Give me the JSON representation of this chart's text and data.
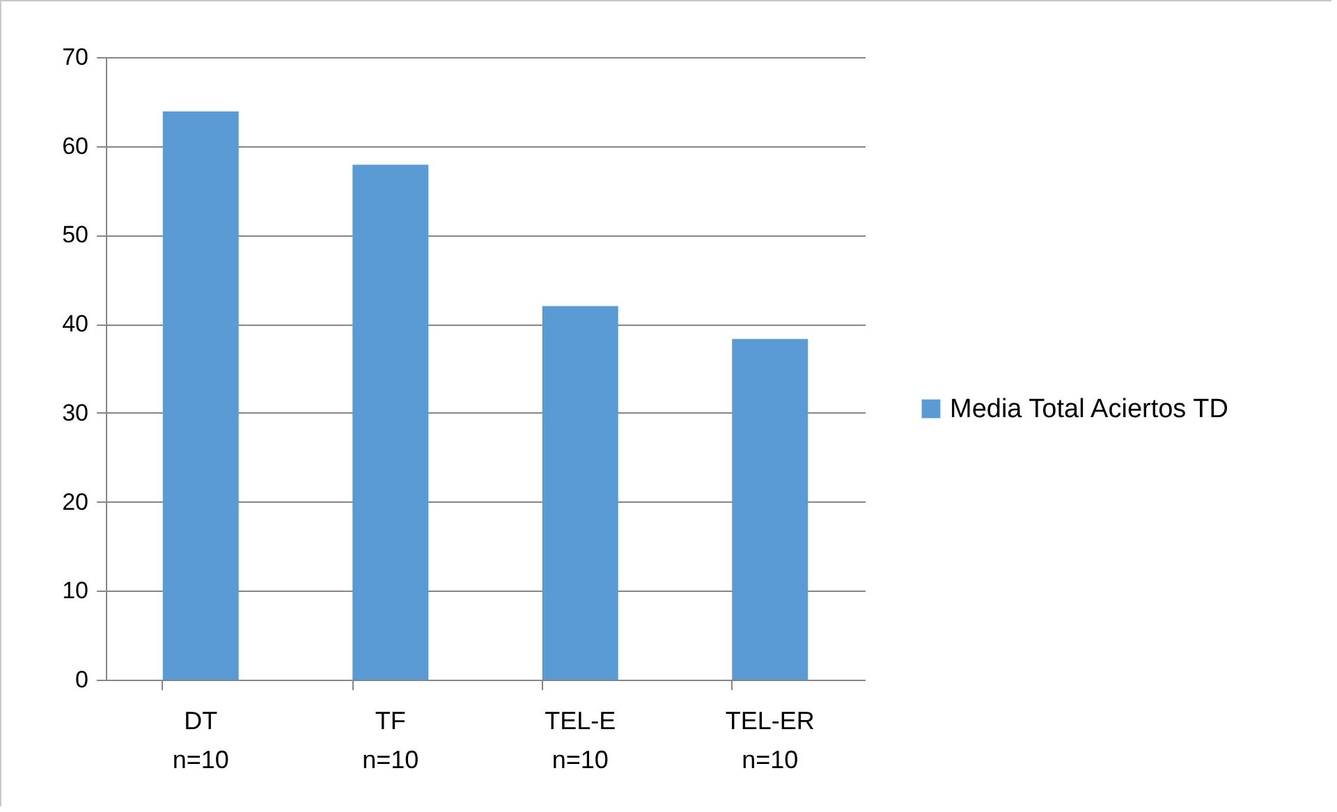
{
  "chart_data": {
    "type": "bar",
    "categories": [
      "DT\nn=10",
      "TF\nn=10",
      "TEL-E\nn=10",
      "TEL-ER\nn=10"
    ],
    "series": [
      {
        "name": "Media Total Aciertos TD",
        "color": "#5b9bd5",
        "values": [
          63.9,
          57.9,
          42.0,
          38.3
        ]
      }
    ],
    "ylim": [
      0,
      70
    ],
    "yticks": [
      0,
      10,
      20,
      30,
      40,
      50,
      60,
      70
    ],
    "grid": "y",
    "legend": "right"
  }
}
